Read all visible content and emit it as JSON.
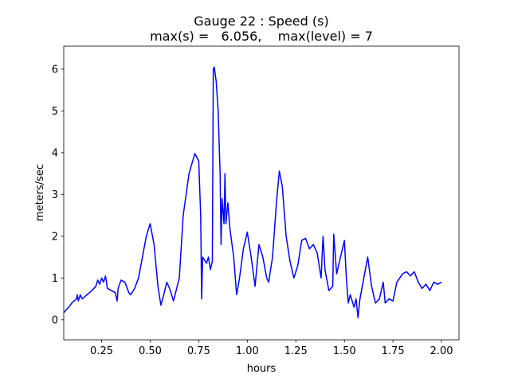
{
  "chart_data": {
    "type": "line",
    "title": "Gauge 22 : Speed (s)",
    "subtitle": "max(s) =   6.056,    max(level) = 7",
    "xlabel": "hours",
    "ylabel": "meters/sec",
    "xlim": [
      0.055,
      2.09
    ],
    "ylim": [
      -0.48,
      6.55
    ],
    "xticks": [
      0.25,
      {
        "value": 0.5,
        "label": "0.50"
      },
      0.75,
      {
        "value": 1,
        "label": "1.00"
      },
      1.25,
      {
        "value": 1.5,
        "label": "1.50"
      },
      1.75,
      {
        "value": 2,
        "label": "2.00"
      }
    ],
    "yticks": [
      0,
      1,
      2,
      3,
      4,
      5,
      6
    ],
    "grid": false,
    "series": [
      {
        "color": "#0000ff",
        "x": [
          0.055,
          0.08,
          0.1,
          0.12,
          0.125,
          0.13,
          0.14,
          0.15,
          0.17,
          0.2,
          0.22,
          0.23,
          0.24,
          0.25,
          0.26,
          0.27,
          0.28,
          0.3,
          0.32,
          0.33,
          0.335,
          0.35,
          0.37,
          0.39,
          0.4,
          0.42,
          0.44,
          0.46,
          0.48,
          0.5,
          0.52,
          0.54,
          0.555,
          0.57,
          0.585,
          0.6,
          0.62,
          0.65,
          0.67,
          0.7,
          0.73,
          0.75,
          0.76,
          0.765,
          0.77,
          0.79,
          0.8,
          0.81,
          0.82,
          0.825,
          0.83,
          0.84,
          0.85,
          0.86,
          0.865,
          0.87,
          0.88,
          0.885,
          0.89,
          0.9,
          0.91,
          0.93,
          0.945,
          0.96,
          0.98,
          1.0,
          1.02,
          1.04,
          1.06,
          1.08,
          1.1,
          1.11,
          1.13,
          1.15,
          1.165,
          1.18,
          1.2,
          1.22,
          1.24,
          1.26,
          1.28,
          1.3,
          1.32,
          1.34,
          1.36,
          1.38,
          1.39,
          1.4,
          1.42,
          1.44,
          1.445,
          1.46,
          1.48,
          1.5,
          1.51,
          1.52,
          1.53,
          1.55,
          1.56,
          1.57,
          1.58,
          1.6,
          1.62,
          1.64,
          1.66,
          1.68,
          1.7,
          1.71,
          1.73,
          1.75,
          1.77,
          1.8,
          1.82,
          1.84,
          1.86,
          1.88,
          1.9,
          1.92,
          1.94,
          1.96,
          1.98,
          2.0
        ],
        "values": [
          0.17,
          0.3,
          0.42,
          0.5,
          0.6,
          0.45,
          0.6,
          0.5,
          0.58,
          0.7,
          0.8,
          0.95,
          0.85,
          1.0,
          0.9,
          1.05,
          0.75,
          0.7,
          0.65,
          0.45,
          0.75,
          0.95,
          0.9,
          0.65,
          0.6,
          0.75,
          1.0,
          1.5,
          2.0,
          2.3,
          1.8,
          0.8,
          0.35,
          0.6,
          0.9,
          0.75,
          0.45,
          1.0,
          2.5,
          3.5,
          3.98,
          3.8,
          2.5,
          0.5,
          1.5,
          1.35,
          1.5,
          1.2,
          1.4,
          6.0,
          6.05,
          5.7,
          5.0,
          3.5,
          1.8,
          2.9,
          2.3,
          3.5,
          2.3,
          2.8,
          2.2,
          1.5,
          0.6,
          1.0,
          1.7,
          2.1,
          1.5,
          0.8,
          1.8,
          1.5,
          1.0,
          0.9,
          1.5,
          2.8,
          3.56,
          3.2,
          2.0,
          1.4,
          1.0,
          1.3,
          1.9,
          1.95,
          1.7,
          1.8,
          1.6,
          1.0,
          2.0,
          1.2,
          0.7,
          0.8,
          2.05,
          1.1,
          1.5,
          1.9,
          1.0,
          0.4,
          0.6,
          0.3,
          0.5,
          0.05,
          0.5,
          1.0,
          1.5,
          0.8,
          0.4,
          0.5,
          0.9,
          0.4,
          0.5,
          0.45,
          0.9,
          1.1,
          1.15,
          1.05,
          1.15,
          0.9,
          0.75,
          0.85,
          0.7,
          0.9,
          0.85,
          0.9
        ]
      }
    ]
  }
}
